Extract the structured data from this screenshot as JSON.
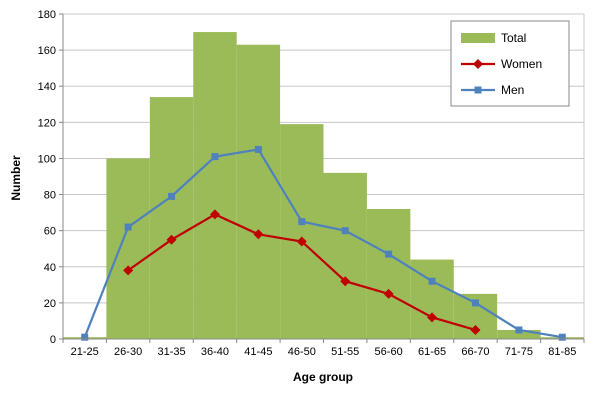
{
  "chart_data": {
    "type": "bar+line",
    "title": "",
    "xlabel": "Age group",
    "ylabel": "Number",
    "categories": [
      "21-25",
      "26-30",
      "31-35",
      "36-40",
      "41-45",
      "46-50",
      "51-55",
      "56-60",
      "61-65",
      "66-70",
      "71-75",
      "81-85"
    ],
    "ylim": [
      0,
      180
    ],
    "yticks": [
      0,
      20,
      40,
      60,
      80,
      100,
      120,
      140,
      160,
      180
    ],
    "grid": true,
    "legend_position": "top-right",
    "series": [
      {
        "name": "Total",
        "kind": "bar",
        "color": "#9BBB59",
        "values": [
          1,
          100,
          134,
          170,
          163,
          119,
          92,
          72,
          44,
          25,
          5,
          1
        ]
      },
      {
        "name": "Women",
        "kind": "line",
        "marker": "diamond",
        "color": "#C00000",
        "values": [
          null,
          38,
          55,
          69,
          58,
          54,
          32,
          25,
          12,
          5,
          null,
          null
        ]
      },
      {
        "name": "Men",
        "kind": "line",
        "marker": "square",
        "color": "#4F81BD",
        "values": [
          1,
          62,
          79,
          101,
          105,
          65,
          60,
          47,
          32,
          20,
          5,
          1
        ]
      }
    ]
  }
}
